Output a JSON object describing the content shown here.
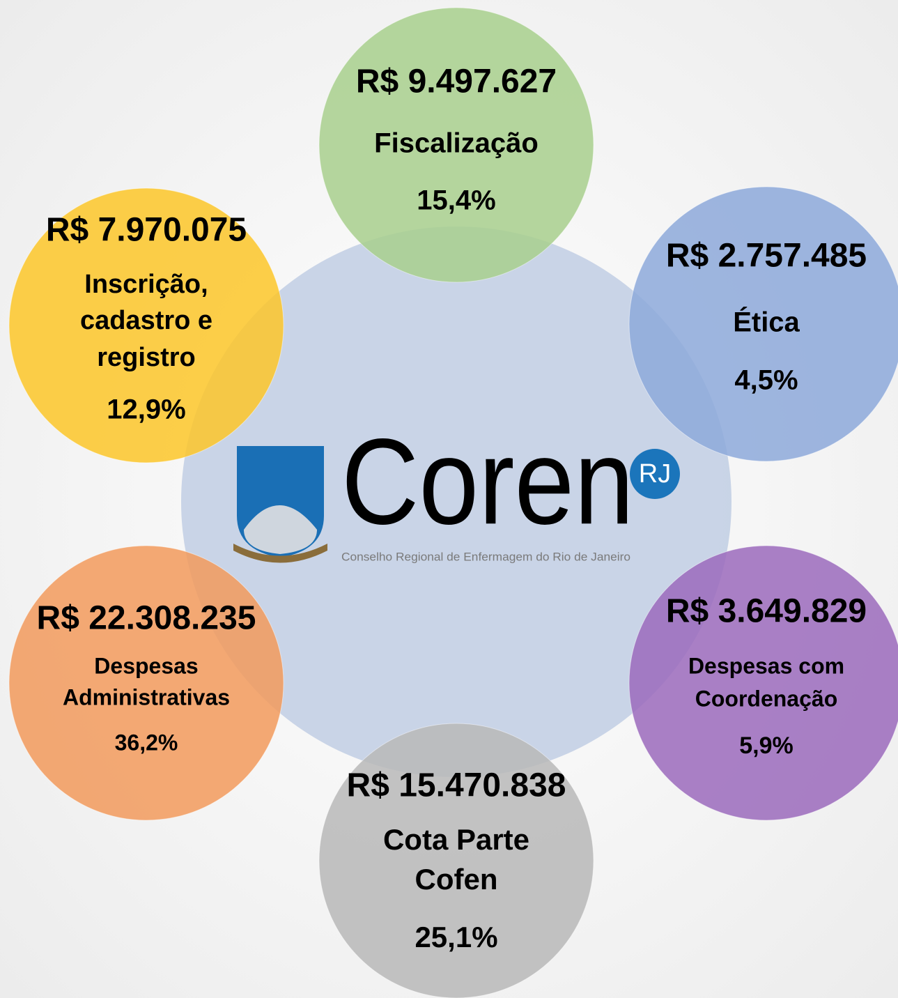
{
  "logo": {
    "title": "Coren",
    "badge": "RJ",
    "subtitle": "Conselho Regional de Enfermagem do Rio de Janeiro"
  },
  "nodes": [
    {
      "amount": "R$ 9.497.627",
      "label": [
        "Fiscalização"
      ],
      "percent": "15,4%"
    },
    {
      "amount": "R$ 7.970.075",
      "label": [
        "Inscrição,",
        "cadastro e",
        "registro"
      ],
      "percent": "12,9%"
    },
    {
      "amount": "R$ 2.757.485",
      "label": [
        "Ética"
      ],
      "percent": "4,5%"
    },
    {
      "amount": "R$ 22.308.235",
      "label": [
        "Despesas",
        "Administrativas"
      ],
      "percent": "36,2%"
    },
    {
      "amount": "R$ 3.649.829",
      "label": [
        "Despesas com",
        "Coordenação"
      ],
      "percent": "5,9%"
    },
    {
      "amount": "R$ 15.470.838",
      "label": [
        "Cota Parte",
        "Cofen"
      ],
      "percent": "25,1%"
    }
  ]
}
